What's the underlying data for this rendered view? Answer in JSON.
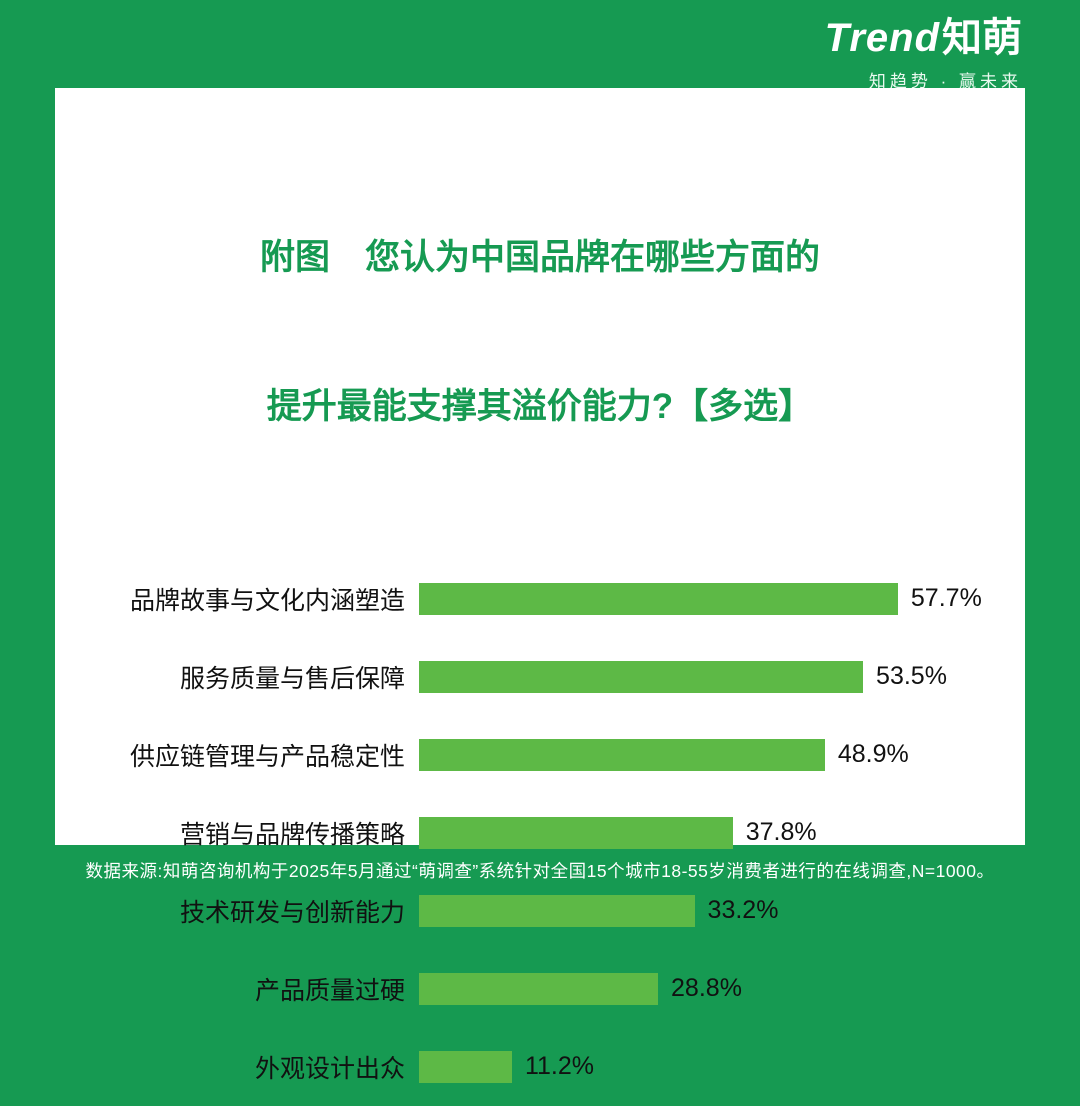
{
  "page": {
    "background_color": "#169a52",
    "bar_color": "#5db946",
    "title_color": "#169a52"
  },
  "header": {
    "logo_en": "Trend",
    "logo_cn": "知萌",
    "tagline": "知趋势 · 赢未来"
  },
  "title": {
    "line1": "附图　您认为中国品牌在哪些方面的",
    "line2": "提升最能支撑其溢价能力?【多选】"
  },
  "chart_data": {
    "type": "bar",
    "orientation": "horizontal",
    "title": "附图 您认为中国品牌在哪些方面的提升最能支撑其溢价能力?【多选】",
    "categories": [
      "品牌故事与文化内涵塑造",
      "服务质量与售后保障",
      "供应链管理与产品稳定性",
      "营销与品牌传播策略",
      "技术研发与创新能力",
      "产品质量过硬",
      "外观设计出众"
    ],
    "values": [
      57.7,
      53.5,
      48.9,
      37.8,
      33.2,
      28.8,
      11.2
    ],
    "value_labels": [
      "57.7%",
      "53.5%",
      "48.9%",
      "37.8%",
      "33.2%",
      "28.8%",
      "11.2%"
    ],
    "value_suffix": "%",
    "xlabel": "",
    "ylabel": "",
    "xlim": [
      0,
      65
    ],
    "grid": false,
    "legend": false
  },
  "footer": {
    "source": "数据来源:知萌咨询机构于2025年5月通过“萌调查”系统针对全国15个城市18-55岁消费者进行的在线调查,N=1000。"
  }
}
